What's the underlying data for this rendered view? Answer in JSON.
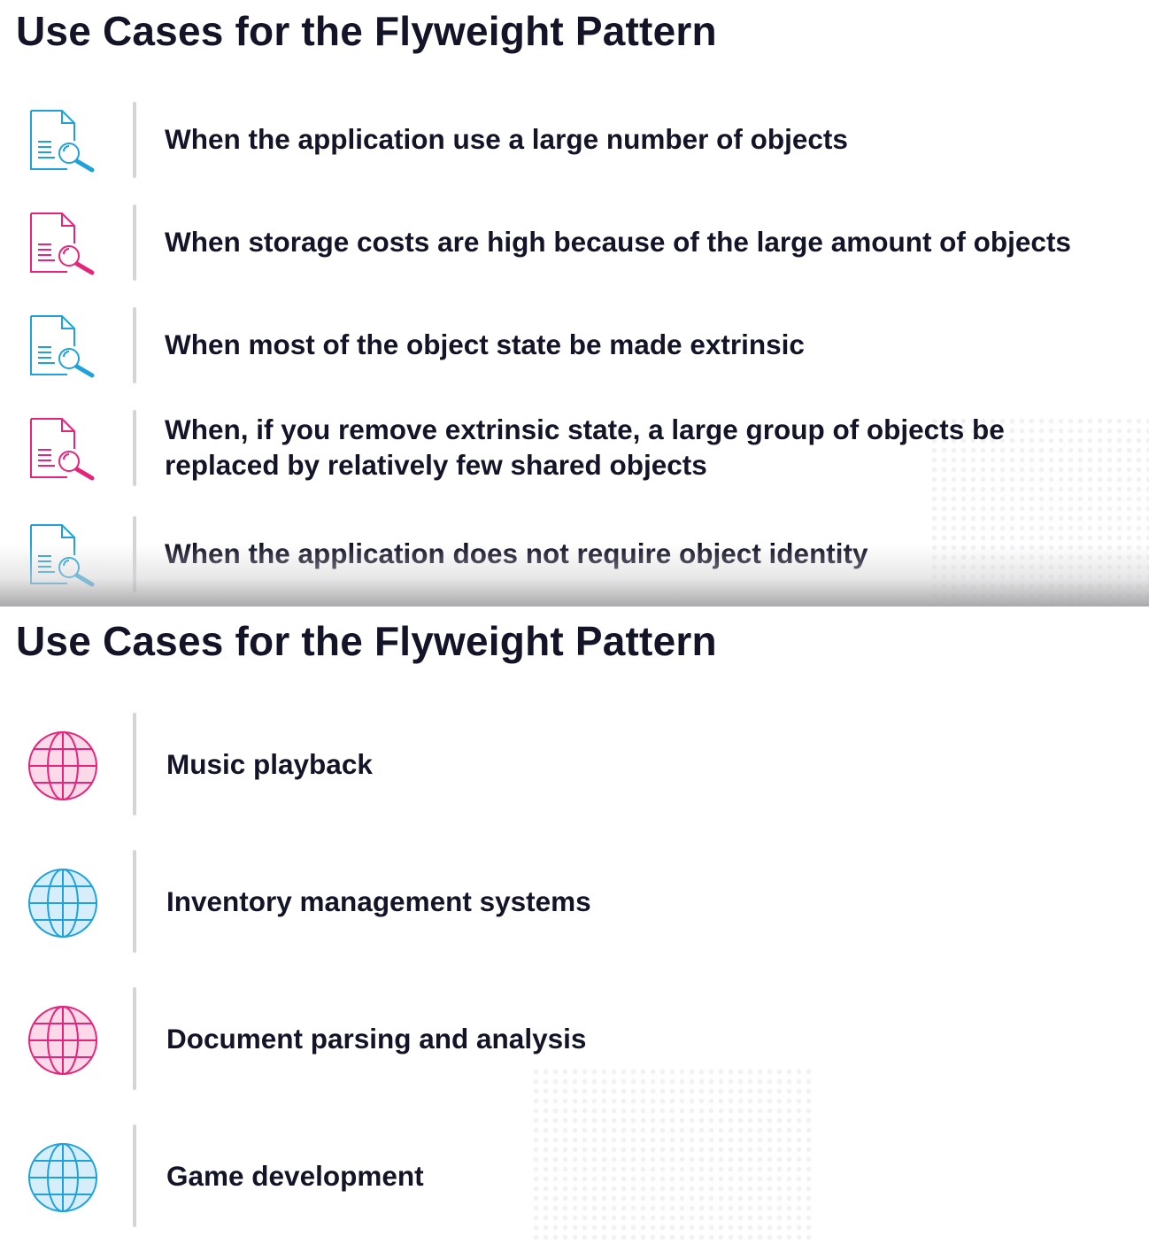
{
  "colors": {
    "blue": "#1fa2dc",
    "pink": "#e8237a",
    "blue_fill": "#d6eefa",
    "pink_fill": "#fbd9e8",
    "text": "#141428"
  },
  "slide1": {
    "title": "Use Cases for the Flyweight Pattern",
    "items": [
      {
        "text": "When the application use a large number of objects",
        "icon": "document-search-icon",
        "color": "blue"
      },
      {
        "text": "When storage costs are high because of the large amount of objects",
        "icon": "document-search-icon",
        "color": "pink"
      },
      {
        "text": "When most of the object state be made extrinsic",
        "icon": "document-search-icon",
        "color": "blue"
      },
      {
        "text": "When, if you remove extrinsic state, a large group of objects be replaced by relatively few shared objects",
        "icon": "document-search-icon",
        "color": "pink"
      },
      {
        "text": "When the application does not require object identity",
        "icon": "document-search-icon",
        "color": "blue"
      }
    ]
  },
  "slide2": {
    "title": "Use Cases for the Flyweight Pattern",
    "items": [
      {
        "text": "Music playback",
        "icon": "globe-icon",
        "color": "pink"
      },
      {
        "text": "Inventory management systems",
        "icon": "globe-icon",
        "color": "blue"
      },
      {
        "text": "Document parsing and analysis",
        "icon": "globe-icon",
        "color": "pink"
      },
      {
        "text": "Game development",
        "icon": "globe-icon",
        "color": "blue"
      }
    ]
  }
}
